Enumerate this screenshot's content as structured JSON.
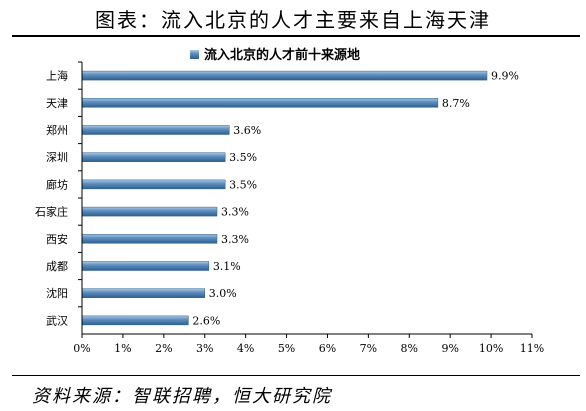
{
  "title": "图表：流入北京的人才主要来自上海天津",
  "source": "资料来源：智联招聘，恒大研究院",
  "chart_data": {
    "type": "bar",
    "orientation": "horizontal",
    "categories": [
      "上海",
      "天津",
      "郑州",
      "深圳",
      "廊坊",
      "石家庄",
      "西安",
      "成都",
      "沈阳",
      "武汉"
    ],
    "series": [
      {
        "name": "流入北京的人才前十来源地",
        "values": [
          9.9,
          8.7,
          3.6,
          3.5,
          3.5,
          3.3,
          3.3,
          3.1,
          3.0,
          2.6
        ],
        "value_labels": [
          "9.9%",
          "8.7%",
          "3.6%",
          "3.5%",
          "3.5%",
          "3.3%",
          "3.3%",
          "3.1%",
          "3.0%",
          "2.6%"
        ]
      }
    ],
    "x_ticks": [
      "0%",
      "1%",
      "2%",
      "3%",
      "4%",
      "5%",
      "6%",
      "7%",
      "8%",
      "9%",
      "10%",
      "11%"
    ],
    "xlim": [
      0,
      11
    ],
    "legend_position": "top-center",
    "grid": false,
    "colors": {
      "bar_fill": "#5f8fbf",
      "bar_dark": "#2d5f8f",
      "bar_light": "#a9c7e3",
      "axis": "#000000"
    }
  }
}
